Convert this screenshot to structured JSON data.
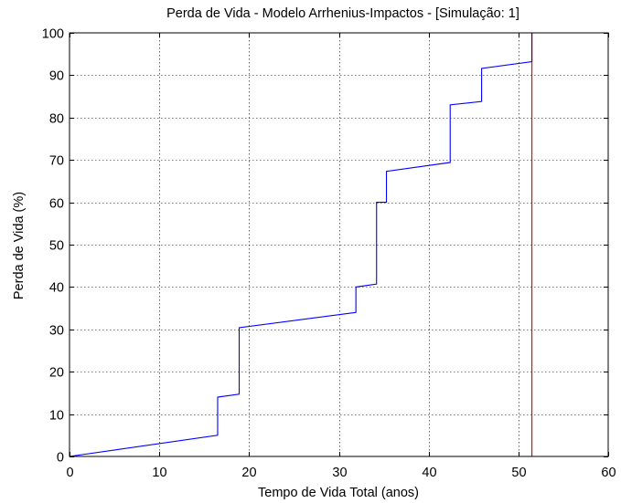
{
  "chart_data": {
    "type": "line",
    "title": "Perda de Vida - Modelo Arrhenius-Impactos - [Simulação: 1]",
    "xlabel": "Tempo de Vida Total (anos)",
    "ylabel": "Perda de Vida (%)",
    "xlim": [
      0,
      60
    ],
    "ylim": [
      0,
      100
    ],
    "xticks": [
      0,
      10,
      20,
      30,
      40,
      50,
      60
    ],
    "yticks": [
      0,
      10,
      20,
      30,
      40,
      50,
      60,
      70,
      80,
      90,
      100
    ],
    "grid": true,
    "legend": "none",
    "series": [
      {
        "color": "#0000ff",
        "x": [
          0,
          16.5,
          16.5,
          18.9,
          18.9,
          31.9,
          31.9,
          34.2,
          34.2,
          35.3,
          35.3,
          42.4,
          42.4,
          45.9,
          45.9,
          51.5,
          51.5
        ],
        "y": [
          0,
          5,
          14,
          14.7,
          30.4,
          34,
          40,
          40.7,
          60,
          60,
          67.3,
          69.4,
          83,
          83.8,
          91.6,
          93.2,
          100
        ]
      }
    ],
    "vline": {
      "x": 51.5,
      "color": "#ff0000"
    }
  }
}
